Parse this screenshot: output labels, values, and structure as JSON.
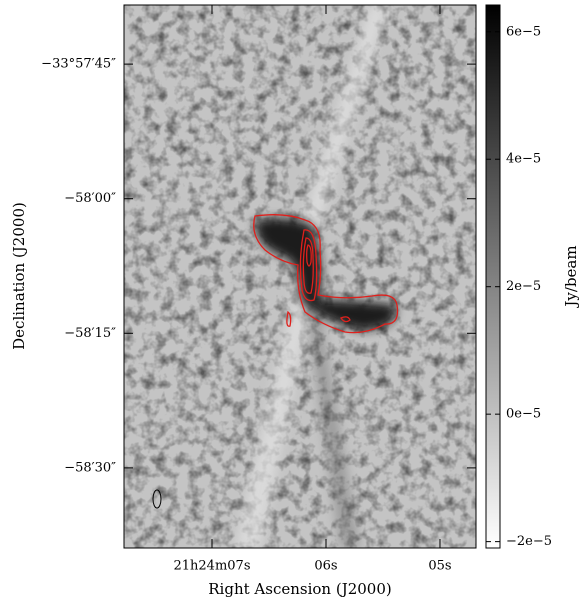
{
  "chart_data": {
    "type": "image",
    "xlabel": "Right Ascension (J2000)",
    "ylabel": "Declination (J2000)",
    "xlim": [
      7.772,
      4.684
    ],
    "xticks": [
      {
        "value": 7,
        "label": "21h24m07s"
      },
      {
        "value": 6,
        "label": "06s"
      },
      {
        "value": 5,
        "label": "05s"
      }
    ],
    "ylim": [
      -33.97748,
      -33.96067
    ],
    "yticks": [
      {
        "value": -33.9625,
        "label": "−33°57′45″"
      },
      {
        "value": -33.966667,
        "label": "−58′00″"
      },
      {
        "value": -33.970833,
        "label": "−58′15″"
      },
      {
        "value": -33.975,
        "label": "−58′30″"
      }
    ],
    "contour_color": "#e0201c",
    "colorbar": {
      "label": "Jy/beam",
      "lim": [
        -2.1e-05,
        6.42e-05
      ],
      "ticks": [
        {
          "value": 6e-05,
          "label": "6e−5"
        },
        {
          "value": 4e-05,
          "label": "4e−5"
        },
        {
          "value": 2e-05,
          "label": "2e−5"
        },
        {
          "value": 0,
          "label": "0e−5"
        },
        {
          "value": -2e-05,
          "label": "−2e−5"
        }
      ]
    }
  }
}
